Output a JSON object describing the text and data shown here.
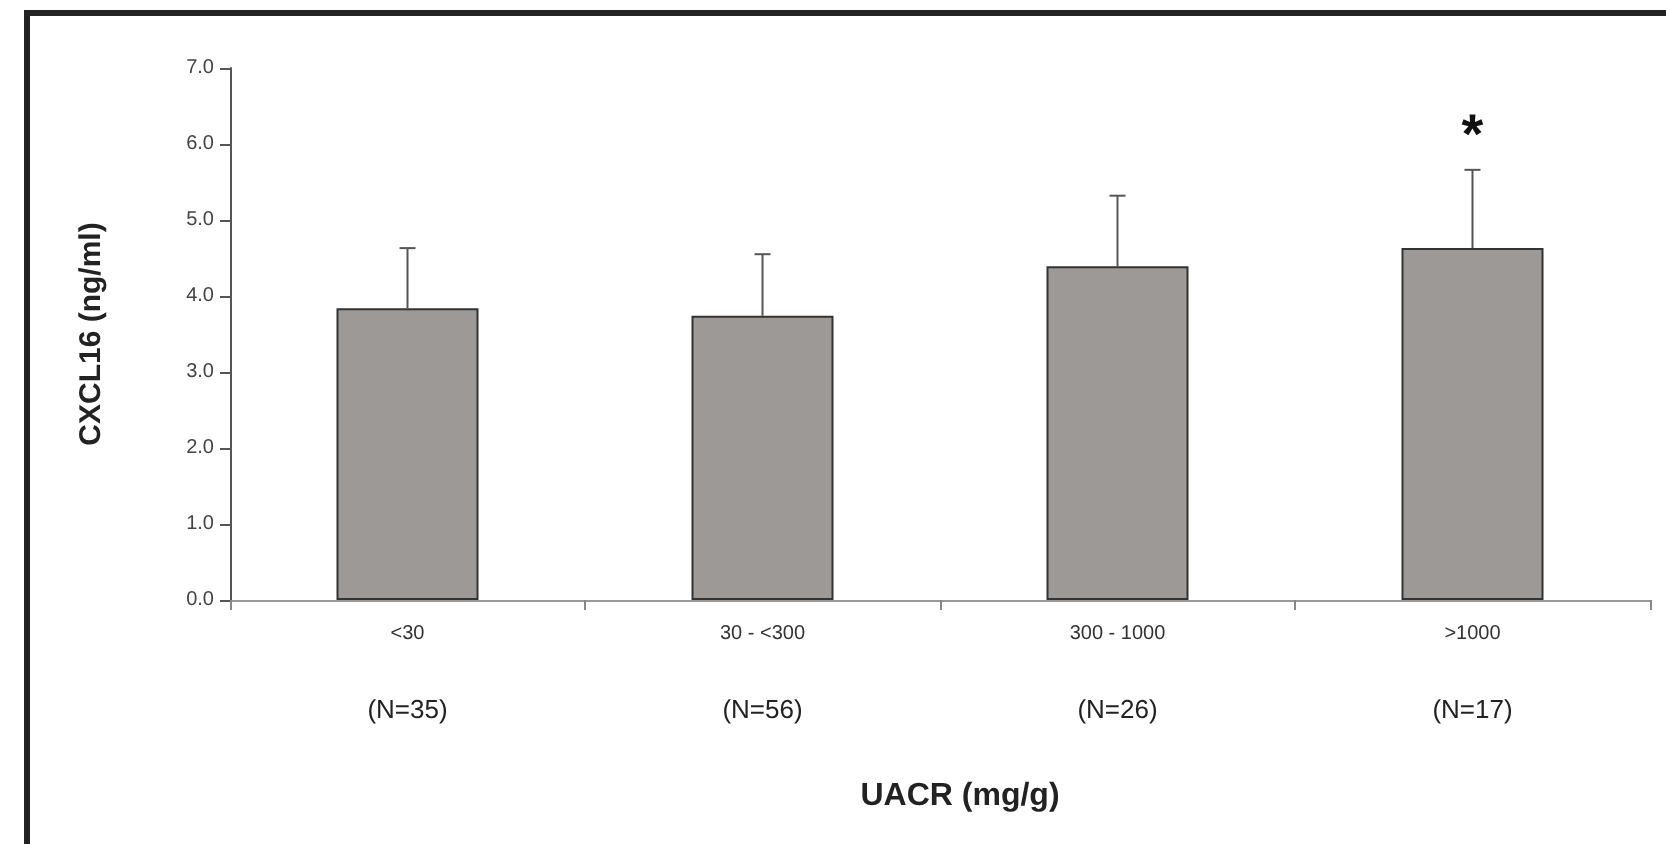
{
  "chart_data": {
    "type": "bar",
    "xlabel": "UACR (mg/g)",
    "ylabel": "CXCL16 (ng/ml)",
    "categories": [
      "<30",
      "30 - <300",
      "300 - 1000",
      ">1000"
    ],
    "values": [
      3.84,
      3.74,
      4.39,
      4.63
    ],
    "errors": [
      [
        3.84,
        4.63
      ],
      [
        3.74,
        4.55
      ],
      [
        4.39,
        5.32
      ],
      [
        4.63,
        5.66
      ]
    ],
    "color": "#9c9996",
    "ylim": [
      0,
      7
    ],
    "yticks": [
      {
        "value": 0,
        "label": "0.0"
      },
      {
        "value": 1,
        "label": "1.0"
      },
      {
        "value": 2,
        "label": "2.0"
      },
      {
        "value": 3,
        "label": "3.0"
      },
      {
        "value": 4,
        "label": "4.0"
      },
      {
        "value": 5,
        "label": "5.0"
      },
      {
        "value": 6,
        "label": "6.0"
      },
      {
        "value": 7,
        "label": "7.0"
      }
    ],
    "grid": false,
    "annotations": [
      {
        "text": "*",
        "x": ">1000",
        "y": 5.66
      },
      "(N=35)",
      "(N=56)",
      "(N=26)",
      "(N=17)"
    ]
  }
}
